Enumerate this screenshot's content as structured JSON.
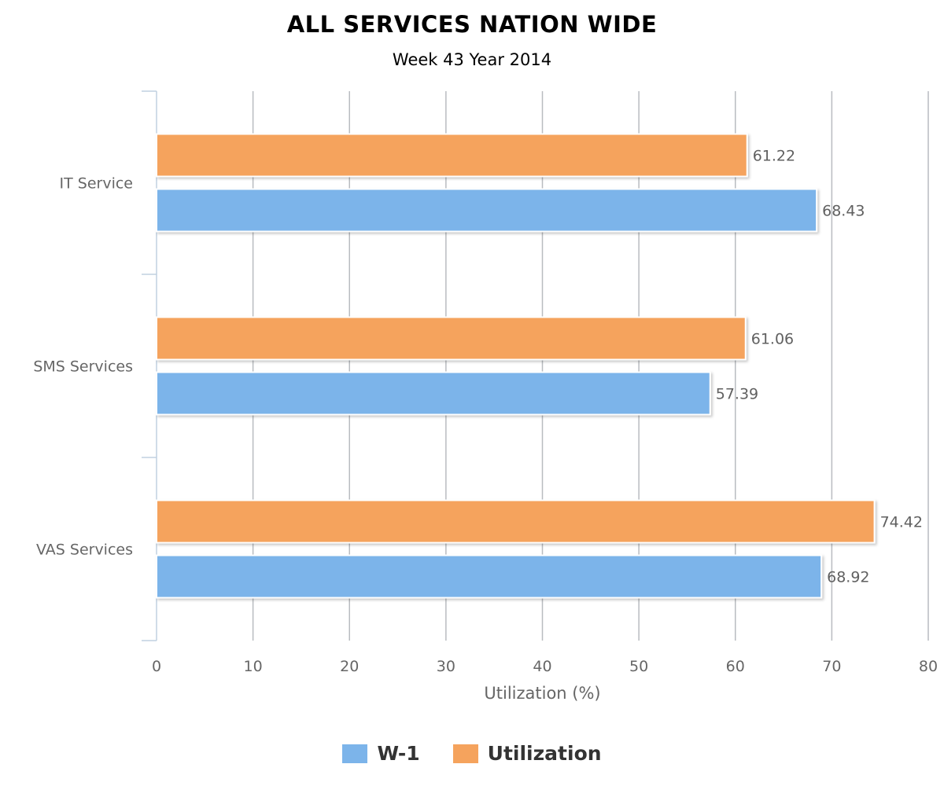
{
  "chart_data": {
    "type": "bar",
    "orientation": "horizontal",
    "title": "ALL SERVICES NATION WIDE",
    "subtitle": "Week 43 Year 2014",
    "xlabel": "Utilization (%)",
    "ylabel": "",
    "categories": [
      "IT Service",
      "SMS Services",
      "VAS Services"
    ],
    "series": [
      {
        "name": "Utilization",
        "color": "#f5a35d",
        "values": [
          61.22,
          61.06,
          74.42
        ]
      },
      {
        "name": "W-1",
        "color": "#7cb4ea",
        "values": [
          68.43,
          57.39,
          68.92
        ]
      }
    ],
    "xlim": [
      0,
      80
    ],
    "xticks": [
      0,
      10,
      20,
      30,
      40,
      50,
      60,
      70,
      80
    ],
    "grid": true,
    "data_labels": true,
    "legend_position": "bottom-center",
    "legend_order": [
      "W-1",
      "Utilization"
    ]
  }
}
